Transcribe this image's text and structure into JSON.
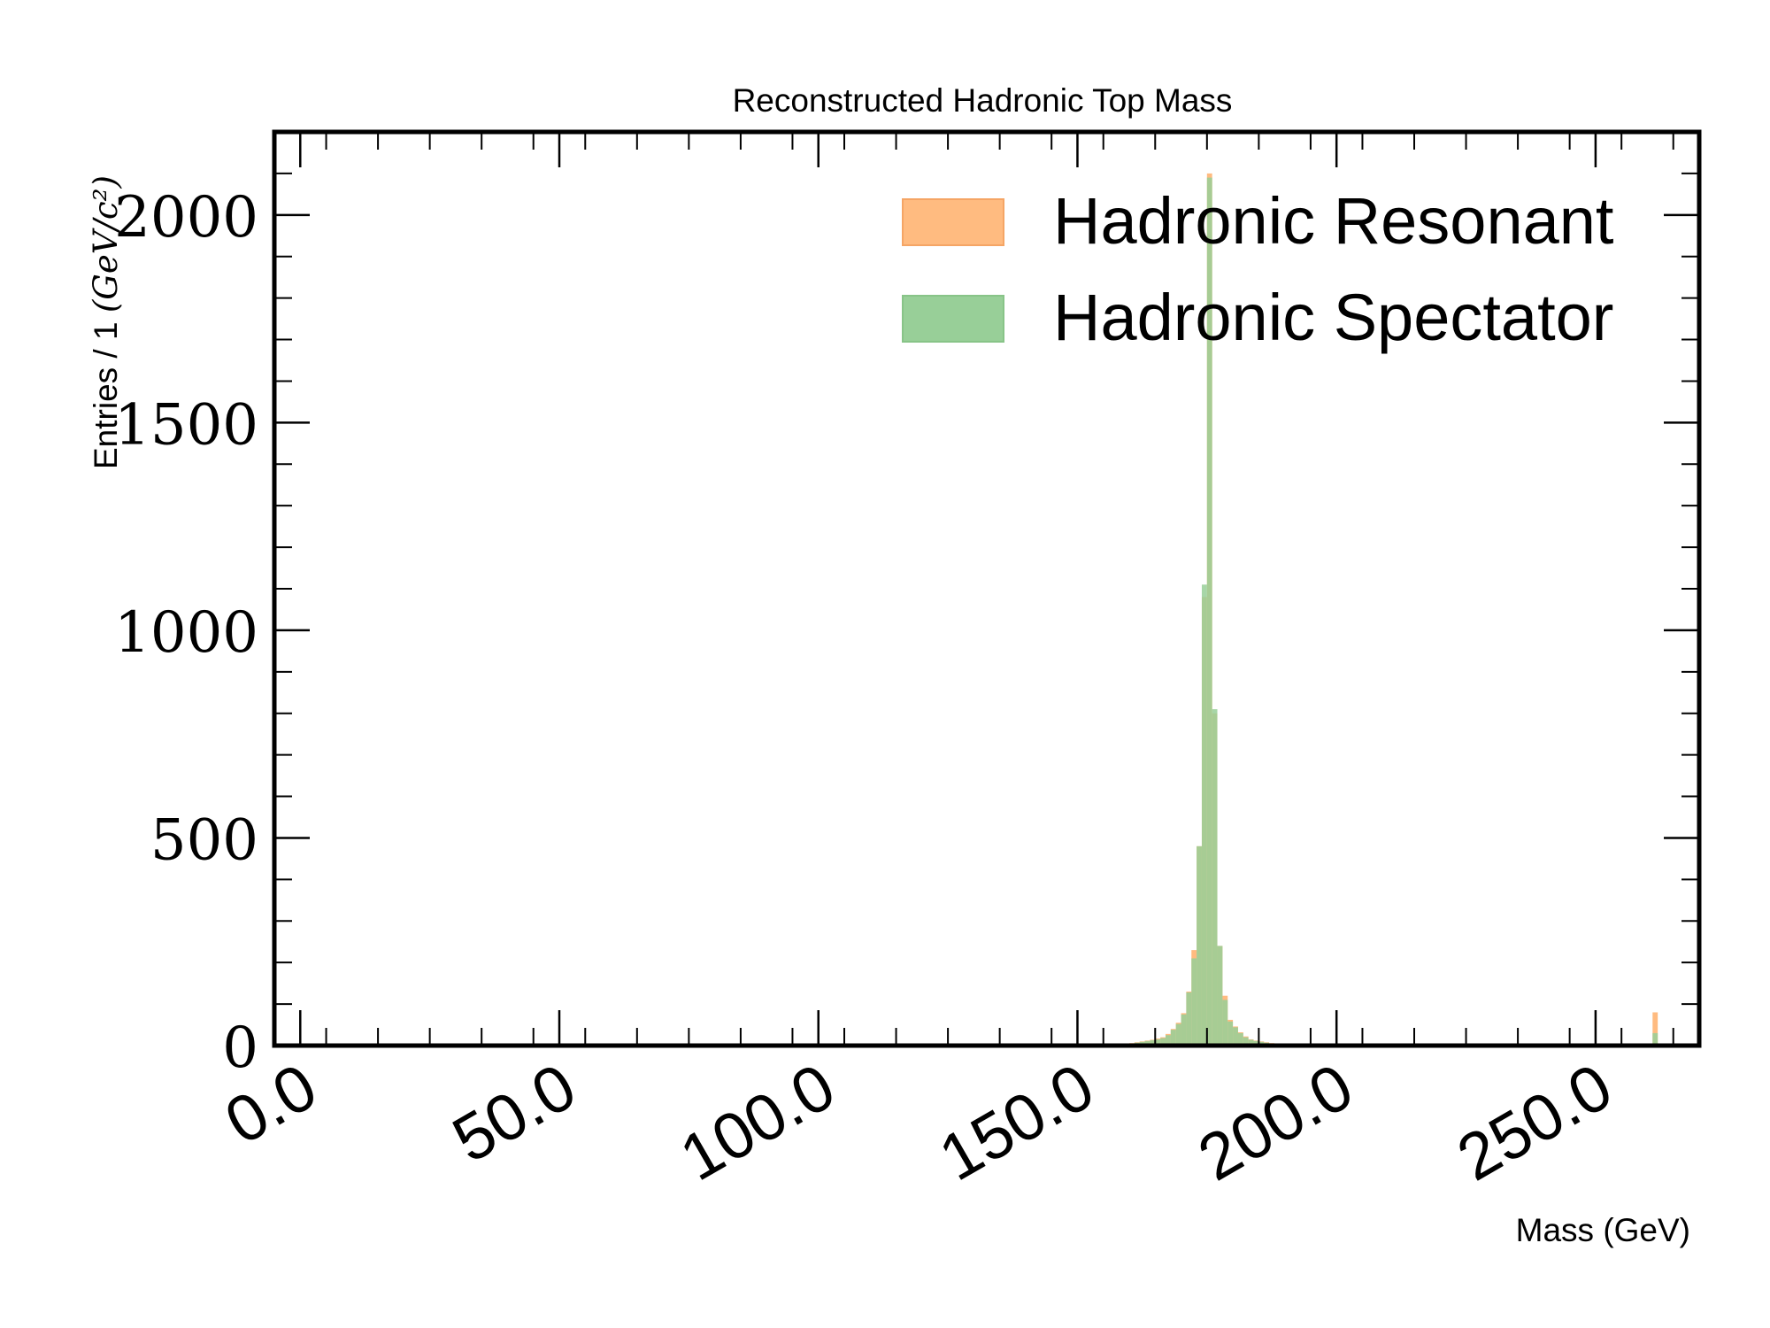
{
  "chart_data": {
    "type": "bar",
    "title": "Reconstructed Hadronic Top Mass",
    "xlabel": "Mass (GeV)",
    "ylabel": "Entries / 1 ",
    "ylabel_units": "(GeV/c²)",
    "xlim": [
      -5,
      270
    ],
    "ylim": [
      0,
      2200
    ],
    "x_ticks": [
      0,
      50,
      100,
      150,
      200,
      250
    ],
    "x_tick_labels": [
      "0.0",
      "50.0",
      "100.0",
      "150.0",
      "200.0",
      "250.0"
    ],
    "y_ticks": [
      0,
      500,
      1000,
      1500,
      2000
    ],
    "y_tick_labels": [
      "0",
      "500",
      "1000",
      "1500",
      "2000"
    ],
    "bin_width": 1,
    "legend_position": "top-right",
    "series": [
      {
        "name": "Hadronic Resonant",
        "color": "#ffbb80",
        "bins": [
          [
            157,
            2
          ],
          [
            158,
            3
          ],
          [
            159,
            4
          ],
          [
            160,
            6
          ],
          [
            161,
            8
          ],
          [
            162,
            10
          ],
          [
            163,
            12
          ],
          [
            164,
            14
          ],
          [
            165,
            17
          ],
          [
            166,
            20
          ],
          [
            167,
            28
          ],
          [
            168,
            40
          ],
          [
            169,
            55
          ],
          [
            170,
            78
          ],
          [
            171,
            130
          ],
          [
            172,
            230
          ],
          [
            173,
            480
          ],
          [
            174,
            1080
          ],
          [
            175,
            2100
          ],
          [
            176,
            800
          ],
          [
            177,
            240
          ],
          [
            178,
            120
          ],
          [
            179,
            62
          ],
          [
            180,
            46
          ],
          [
            181,
            32
          ],
          [
            182,
            22
          ],
          [
            183,
            15
          ],
          [
            184,
            12
          ],
          [
            185,
            10
          ],
          [
            186,
            8
          ],
          [
            187,
            6
          ],
          [
            188,
            5
          ],
          [
            189,
            4
          ],
          [
            190,
            4
          ],
          [
            191,
            3
          ],
          [
            192,
            2
          ],
          [
            261,
            80
          ]
        ]
      },
      {
        "name": "Hadronic Spectator",
        "color": "#98cf98",
        "bins": [
          [
            157,
            1
          ],
          [
            158,
            2
          ],
          [
            159,
            3
          ],
          [
            160,
            5
          ],
          [
            161,
            7
          ],
          [
            162,
            9
          ],
          [
            163,
            11
          ],
          [
            164,
            13
          ],
          [
            165,
            15
          ],
          [
            166,
            18
          ],
          [
            167,
            25
          ],
          [
            168,
            38
          ],
          [
            169,
            52
          ],
          [
            170,
            75
          ],
          [
            171,
            128
          ],
          [
            172,
            210
          ],
          [
            173,
            480
          ],
          [
            174,
            1110
          ],
          [
            175,
            2090
          ],
          [
            176,
            810
          ],
          [
            177,
            240
          ],
          [
            178,
            110
          ],
          [
            179,
            58
          ],
          [
            180,
            44
          ],
          [
            181,
            30
          ],
          [
            182,
            20
          ],
          [
            183,
            14
          ],
          [
            184,
            11
          ],
          [
            185,
            9
          ],
          [
            186,
            7
          ],
          [
            187,
            5
          ],
          [
            188,
            4
          ],
          [
            189,
            3
          ],
          [
            190,
            3
          ],
          [
            191,
            2
          ],
          [
            192,
            2
          ],
          [
            261,
            30
          ]
        ]
      }
    ]
  }
}
